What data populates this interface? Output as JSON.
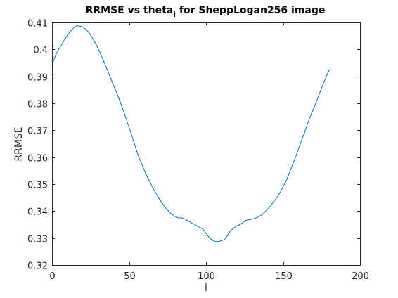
{
  "chart_data": {
    "type": "line",
    "title": {
      "prefix": "RRMSE vs theta",
      "subscript": "i",
      "suffix": " for SheppLogan256 image"
    },
    "xlabel": "i",
    "ylabel": "RRMSE",
    "xlim": [
      0,
      200
    ],
    "ylim": [
      0.32,
      0.41
    ],
    "xticks": [
      0,
      50,
      100,
      150,
      200
    ],
    "xtick_labels": [
      "0",
      "50",
      "100",
      "150",
      "200"
    ],
    "yticks": [
      0.32,
      0.33,
      0.34,
      0.35,
      0.36,
      0.37,
      0.38,
      0.39,
      0.4,
      0.41
    ],
    "ytick_labels": [
      "0.32",
      "0.33",
      "0.34",
      "0.35",
      "0.36",
      "0.37",
      "0.38",
      "0.39",
      "0.4",
      "0.41"
    ],
    "grid": false,
    "box": true,
    "series": [
      {
        "color": "#0072bd",
        "x": [
          0,
          2,
          4,
          6,
          8,
          10,
          12,
          14,
          16,
          18,
          20,
          22,
          24,
          26,
          28,
          30,
          32,
          34,
          36,
          38,
          40,
          42,
          44,
          46,
          48,
          50,
          52,
          54,
          56,
          58,
          60,
          62,
          64,
          66,
          68,
          70,
          72,
          74,
          76,
          78,
          80,
          82,
          84,
          86,
          88,
          90,
          92,
          94,
          96,
          98,
          100,
          102,
          104,
          106,
          108,
          110,
          112,
          114,
          116,
          118,
          120,
          122,
          124,
          126,
          128,
          130,
          132,
          134,
          136,
          138,
          140,
          142,
          144,
          146,
          148,
          150,
          152,
          154,
          156,
          158,
          160,
          162,
          164,
          166,
          168,
          170,
          172,
          174,
          176,
          178,
          180
        ],
        "y": [
          0.3942,
          0.3975,
          0.3998,
          0.4015,
          0.4035,
          0.4052,
          0.4068,
          0.408,
          0.4088,
          0.4087,
          0.4083,
          0.4075,
          0.4062,
          0.4045,
          0.4025,
          0.4002,
          0.3978,
          0.395,
          0.3922,
          0.3895,
          0.3865,
          0.3838,
          0.381,
          0.3778,
          0.3745,
          0.3712,
          0.3676,
          0.364,
          0.3606,
          0.3578,
          0.355,
          0.3525,
          0.3503,
          0.348,
          0.346,
          0.3442,
          0.3425,
          0.341,
          0.3398,
          0.3388,
          0.338,
          0.3375,
          0.3375,
          0.3372,
          0.3365,
          0.3358,
          0.3352,
          0.3345,
          0.334,
          0.3333,
          0.3318,
          0.3302,
          0.3292,
          0.3287,
          0.3287,
          0.329,
          0.3295,
          0.331,
          0.3328,
          0.3337,
          0.3345,
          0.335,
          0.3358,
          0.3366,
          0.3368,
          0.337,
          0.3374,
          0.3379,
          0.3385,
          0.3395,
          0.3408,
          0.342,
          0.3436,
          0.345,
          0.3468,
          0.349,
          0.3512,
          0.354,
          0.357,
          0.3598,
          0.363,
          0.3662,
          0.3692,
          0.3725,
          0.3755,
          0.3782,
          0.3812,
          0.3842,
          0.387,
          0.3898,
          0.3925
        ]
      }
    ]
  }
}
